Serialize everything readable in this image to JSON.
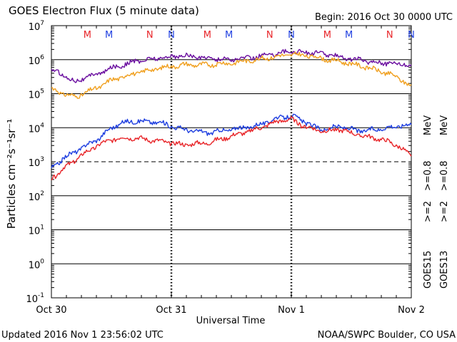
{
  "title": "GOES Electron Flux (5 minute data)",
  "begin": "Begin: 2016 Oct 30 0000 UTC",
  "updated": "Updated 2016 Nov  1 23:56:02 UTC",
  "credit": "NOAA/SWPC Boulder, CO USA",
  "markers": [
    {
      "label": "M",
      "day": 0.3,
      "color": "#e8262a"
    },
    {
      "label": "M",
      "day": 0.48,
      "color": "#1f3fe0"
    },
    {
      "label": "N",
      "day": 0.82,
      "color": "#e8262a"
    },
    {
      "label": "N",
      "day": 1.0,
      "color": "#1f3fe0"
    },
    {
      "label": "M",
      "day": 1.3,
      "color": "#e8262a"
    },
    {
      "label": "M",
      "day": 1.48,
      "color": "#1f3fe0"
    },
    {
      "label": "N",
      "day": 1.82,
      "color": "#e8262a"
    },
    {
      "label": "N",
      "day": 2.0,
      "color": "#1f3fe0"
    },
    {
      "label": "M",
      "day": 2.3,
      "color": "#e8262a"
    },
    {
      "label": "M",
      "day": 2.48,
      "color": "#1f3fe0"
    },
    {
      "label": "N",
      "day": 2.82,
      "color": "#e8262a"
    },
    {
      "label": "N",
      "day": 3.0,
      "color": "#1f3fe0"
    }
  ],
  "legend": {
    "goes15": {
      "sat": "GOES15",
      "lo": ">=2",
      "hi": ">=0.8",
      "unit": "MeV",
      "lo_color": "#1f3fe0",
      "hi_color": "#6b0fa0"
    },
    "goes13": {
      "sat": "GOES13",
      "lo": ">=2",
      "hi": ">=0.8",
      "unit": "MeV",
      "lo_color": "#e8262a",
      "hi_color": "#f0a020"
    }
  },
  "chart_data": {
    "type": "line",
    "ylabel": "Particles cm⁻²s⁻¹sr⁻¹",
    "xlabel": "Universal Time",
    "xlim": [
      0,
      3
    ],
    "ylim_log10": [
      -1,
      7
    ],
    "log_scale": true,
    "x_ticks": [
      {
        "day": 0,
        "label": "Oct 30"
      },
      {
        "day": 1,
        "label": "Oct 31"
      },
      {
        "day": 2,
        "label": "Nov 1"
      },
      {
        "day": 3,
        "label": "Nov 2"
      }
    ],
    "y_ticks": [
      {
        "exp": 7,
        "label": "10",
        "sup": "7"
      },
      {
        "exp": 6,
        "label": "10",
        "sup": "6"
      },
      {
        "exp": 5,
        "label": "10",
        "sup": "5"
      },
      {
        "exp": 4,
        "label": "10",
        "sup": "4"
      },
      {
        "exp": 3,
        "label": "10",
        "sup": "3"
      },
      {
        "exp": 2,
        "label": "10",
        "sup": "2"
      },
      {
        "exp": 1,
        "label": "10",
        "sup": "1"
      },
      {
        "exp": 0,
        "label": "10",
        "sup": "0"
      },
      {
        "exp": -1,
        "label": "10",
        "sup": "-1"
      }
    ],
    "threshold_exp": 3,
    "series": [
      {
        "name": "GOES15 >=0.8 MeV",
        "color": "#6b0fa0",
        "points": [
          [
            0,
            5.7
          ],
          [
            0.1,
            5.55
          ],
          [
            0.2,
            5.35
          ],
          [
            0.3,
            5.5
          ],
          [
            0.4,
            5.6
          ],
          [
            0.5,
            5.75
          ],
          [
            0.6,
            5.85
          ],
          [
            0.7,
            5.95
          ],
          [
            0.9,
            6.05
          ],
          [
            1.1,
            6.12
          ],
          [
            1.3,
            6.05
          ],
          [
            1.5,
            6.0
          ],
          [
            1.7,
            6.08
          ],
          [
            1.9,
            6.2
          ],
          [
            2.0,
            6.25
          ],
          [
            2.1,
            6.22
          ],
          [
            2.2,
            6.2
          ],
          [
            2.3,
            6.15
          ],
          [
            2.4,
            6.1
          ],
          [
            2.5,
            6.02
          ],
          [
            2.6,
            5.98
          ],
          [
            2.7,
            5.92
          ],
          [
            2.8,
            5.9
          ],
          [
            2.9,
            5.88
          ],
          [
            3.0,
            5.85
          ]
        ]
      },
      {
        "name": "GOES13 >=0.8 MeV",
        "color": "#f0a020",
        "points": [
          [
            0,
            5.15
          ],
          [
            0.1,
            5.0
          ],
          [
            0.2,
            4.9
          ],
          [
            0.3,
            5.05
          ],
          [
            0.4,
            5.2
          ],
          [
            0.5,
            5.4
          ],
          [
            0.6,
            5.5
          ],
          [
            0.7,
            5.6
          ],
          [
            0.9,
            5.75
          ],
          [
            1.1,
            5.85
          ],
          [
            1.3,
            5.85
          ],
          [
            1.5,
            5.9
          ],
          [
            1.7,
            6.0
          ],
          [
            1.9,
            6.1
          ],
          [
            2.0,
            6.15
          ],
          [
            2.1,
            6.13
          ],
          [
            2.2,
            6.08
          ],
          [
            2.3,
            6.0
          ],
          [
            2.4,
            5.95
          ],
          [
            2.5,
            5.88
          ],
          [
            2.6,
            5.8
          ],
          [
            2.7,
            5.7
          ],
          [
            2.8,
            5.6
          ],
          [
            2.9,
            5.45
          ],
          [
            3.0,
            5.2
          ]
        ]
      },
      {
        "name": "GOES15 >=2 MeV",
        "color": "#1f3fe0",
        "points": [
          [
            0,
            2.8
          ],
          [
            0.1,
            3.1
          ],
          [
            0.2,
            3.3
          ],
          [
            0.3,
            3.5
          ],
          [
            0.4,
            3.7
          ],
          [
            0.5,
            4.0
          ],
          [
            0.6,
            4.15
          ],
          [
            0.7,
            4.2
          ],
          [
            0.9,
            4.15
          ],
          [
            1.1,
            3.95
          ],
          [
            1.3,
            3.85
          ],
          [
            1.5,
            3.95
          ],
          [
            1.7,
            4.05
          ],
          [
            1.9,
            4.3
          ],
          [
            2.0,
            4.35
          ],
          [
            2.1,
            4.2
          ],
          [
            2.2,
            4.0
          ],
          [
            2.3,
            3.95
          ],
          [
            2.4,
            4.05
          ],
          [
            2.5,
            3.95
          ],
          [
            2.6,
            3.9
          ],
          [
            2.7,
            3.95
          ],
          [
            2.8,
            4.0
          ],
          [
            2.9,
            4.05
          ],
          [
            3.0,
            4.1
          ]
        ]
      },
      {
        "name": "GOES13 >=2 MeV",
        "color": "#e8262a",
        "points": [
          [
            0,
            2.5
          ],
          [
            0.1,
            2.8
          ],
          [
            0.2,
            3.05
          ],
          [
            0.3,
            3.3
          ],
          [
            0.4,
            3.5
          ],
          [
            0.5,
            3.65
          ],
          [
            0.6,
            3.7
          ],
          [
            0.7,
            3.7
          ],
          [
            0.9,
            3.6
          ],
          [
            1.1,
            3.5
          ],
          [
            1.3,
            3.55
          ],
          [
            1.5,
            3.75
          ],
          [
            1.7,
            3.95
          ],
          [
            1.9,
            4.2
          ],
          [
            2.0,
            4.25
          ],
          [
            2.1,
            4.05
          ],
          [
            2.2,
            3.95
          ],
          [
            2.3,
            3.9
          ],
          [
            2.4,
            3.95
          ],
          [
            2.5,
            3.85
          ],
          [
            2.6,
            3.75
          ],
          [
            2.7,
            3.7
          ],
          [
            2.8,
            3.6
          ],
          [
            2.9,
            3.45
          ],
          [
            3.0,
            3.15
          ]
        ]
      }
    ]
  }
}
